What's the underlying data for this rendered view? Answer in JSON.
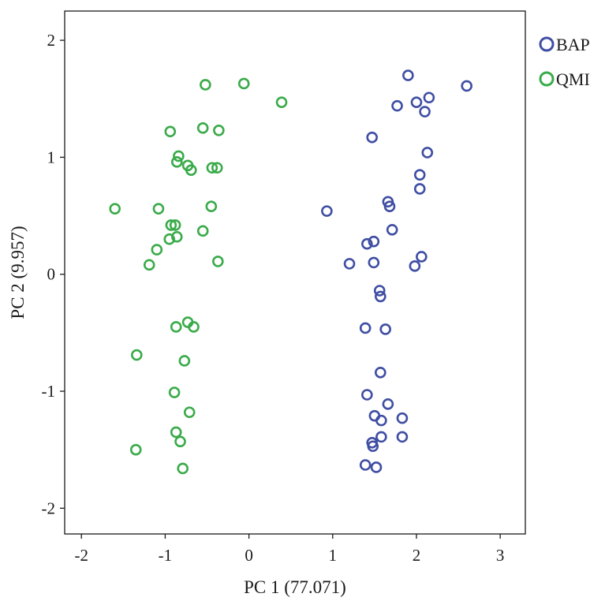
{
  "chart_data": {
    "type": "scatter",
    "xlabel": "PC 1 (77.071)",
    "ylabel": "PC 2 (9.957)",
    "xlim": [
      -2.2,
      3.3
    ],
    "ylim": [
      -2.22,
      2.25
    ],
    "xticks": [
      -2,
      -1,
      0,
      1,
      2,
      3
    ],
    "yticks": [
      -2,
      -1,
      0,
      1,
      2
    ],
    "xtick_labels": [
      "-2",
      "-1",
      "0",
      "1",
      "2",
      "3"
    ],
    "ytick_labels": [
      "-2",
      "-1",
      "0",
      "1",
      "2"
    ],
    "grid": false,
    "legend_position": "outside-top-right",
    "marker": "open-circle",
    "series": [
      {
        "name": "BAP",
        "color": "#3f4ea3",
        "points": [
          [
            1.9,
            1.7
          ],
          [
            2.6,
            1.61
          ],
          [
            2.15,
            1.51
          ],
          [
            2.0,
            1.47
          ],
          [
            1.77,
            1.44
          ],
          [
            2.1,
            1.39
          ],
          [
            1.47,
            1.17
          ],
          [
            2.13,
            1.04
          ],
          [
            2.04,
            0.85
          ],
          [
            2.04,
            0.73
          ],
          [
            1.66,
            0.62
          ],
          [
            1.68,
            0.58
          ],
          [
            0.93,
            0.54
          ],
          [
            1.71,
            0.38
          ],
          [
            1.49,
            0.28
          ],
          [
            1.41,
            0.26
          ],
          [
            2.06,
            0.15
          ],
          [
            1.49,
            0.1
          ],
          [
            1.2,
            0.09
          ],
          [
            1.98,
            0.07
          ],
          [
            1.56,
            -0.14
          ],
          [
            1.57,
            -0.19
          ],
          [
            1.39,
            -0.46
          ],
          [
            1.63,
            -0.47
          ],
          [
            1.57,
            -0.84
          ],
          [
            1.41,
            -1.03
          ],
          [
            1.66,
            -1.11
          ],
          [
            1.5,
            -1.21
          ],
          [
            1.58,
            -1.25
          ],
          [
            1.83,
            -1.23
          ],
          [
            1.47,
            -1.44
          ],
          [
            1.48,
            -1.47
          ],
          [
            1.58,
            -1.39
          ],
          [
            1.83,
            -1.39
          ],
          [
            1.39,
            -1.63
          ],
          [
            1.52,
            -1.65
          ]
        ]
      },
      {
        "name": "QMI",
        "color": "#3aab4a",
        "points": [
          [
            -0.06,
            1.63
          ],
          [
            -0.52,
            1.62
          ],
          [
            0.39,
            1.47
          ],
          [
            -0.94,
            1.22
          ],
          [
            -0.55,
            1.25
          ],
          [
            -0.36,
            1.23
          ],
          [
            -0.84,
            1.01
          ],
          [
            -0.86,
            0.96
          ],
          [
            -0.73,
            0.93
          ],
          [
            -0.69,
            0.89
          ],
          [
            -0.44,
            0.91
          ],
          [
            -0.38,
            0.91
          ],
          [
            -1.6,
            0.56
          ],
          [
            -1.08,
            0.56
          ],
          [
            -0.45,
            0.58
          ],
          [
            -0.93,
            0.42
          ],
          [
            -0.88,
            0.42
          ],
          [
            -0.55,
            0.37
          ],
          [
            -0.95,
            0.3
          ],
          [
            -0.86,
            0.32
          ],
          [
            -1.1,
            0.21
          ],
          [
            -0.37,
            0.11
          ],
          [
            -1.19,
            0.08
          ],
          [
            -0.73,
            -0.41
          ],
          [
            -0.87,
            -0.45
          ],
          [
            -0.66,
            -0.45
          ],
          [
            -1.34,
            -0.69
          ],
          [
            -0.77,
            -0.74
          ],
          [
            -0.89,
            -1.01
          ],
          [
            -0.71,
            -1.18
          ],
          [
            -0.87,
            -1.35
          ],
          [
            -0.82,
            -1.43
          ],
          [
            -1.35,
            -1.5
          ],
          [
            -0.79,
            -1.66
          ]
        ]
      }
    ]
  }
}
